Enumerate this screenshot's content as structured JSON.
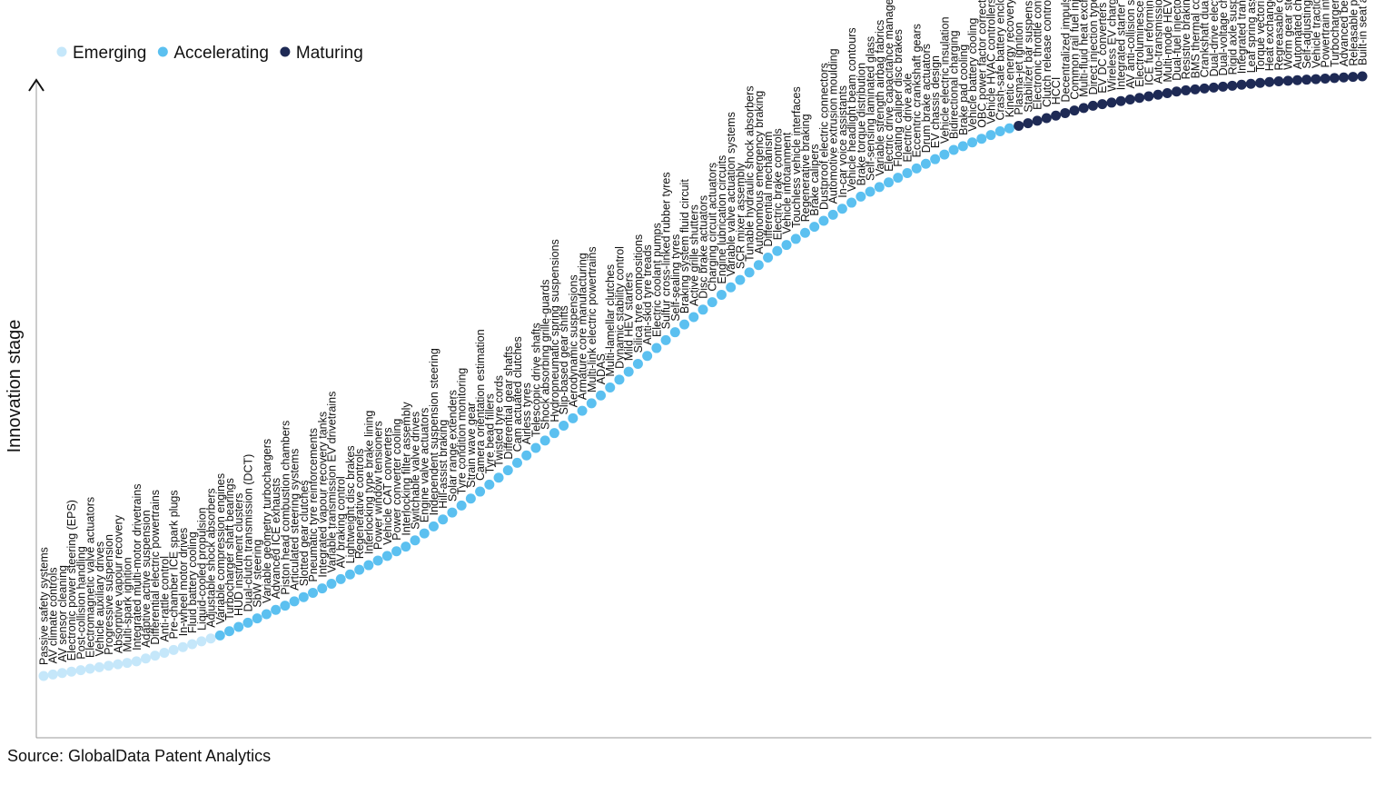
{
  "chart_data": {
    "type": "scatter",
    "y_label": "Innovation stage",
    "source": "Source: GlobalData Patent Analytics",
    "series": [
      {
        "name": "Emerging",
        "color": "#c5e7fa",
        "categories": [
          "Passive safety systems",
          "AV climate controls",
          "AV sensor cleaning",
          "Electronic power steering (EPS)",
          "Post-collision handling",
          "Electromagnetic valve actuators",
          "Vehicle auxiliary drives",
          "Progressive suspension",
          "Absorptive vapour recovery",
          "Multi-spark ignition",
          "Integrated multi-motor drivetrains",
          "Adaptive active suspension",
          "Differential electric powertrains",
          "Anti-rattle control",
          "Pre-chamber ICE spark plugs",
          "In-wheel motor drives",
          "Fluid battery cooling",
          "Liquid-cooled propulsion",
          "Adjustable shock absorbers"
        ]
      },
      {
        "name": "Accelerating",
        "color": "#5bc0f0",
        "categories": [
          "Variable compression engines",
          "Turbocharger shaft bearings",
          "HUD instrument clusters",
          "Dual-clutch transmission (DCT)",
          "SbW steering",
          "Variable geometry turbochargers",
          "Advanced ICE exhausts",
          "Piston head combustion chambers",
          "Articulated steering systems",
          "Slotted gear clutches",
          "Pneumatic tyre reinforcements",
          "Integrated vapour recovery tanks",
          "Variable transmission EV drivetrains",
          "AV braking control",
          "Lightweight disc brakes",
          "Regenerative controls",
          "Interlocking type brake lining",
          "Power window tensioners",
          "Vehicle CAT converters",
          "Power converter cooling",
          "Interlocking filter assembly",
          "Switchable valve drives",
          "Engine valve actuators",
          "Independent suspension steering",
          "Hill-assist braking",
          "Solar range extenders",
          "Tyre condition monitoring",
          "Strain wave gear",
          "Camera orientation estimation",
          "Tyre bead fillers",
          "Twisted tyre cords",
          "Differential gear shafts",
          "Cam actuated clutches",
          "Airless tyres",
          "Telescopic drive shafts",
          "Shock absorbing grille-guards",
          "Hydropneumatic spring suspensions",
          "Slip-based gear shifts",
          "Aerodynamic suspensions",
          "Armature core manufacturing",
          "Multi-link electric powertrains",
          "ADAS",
          "Multi-lamellar clutches",
          "Dynamic stability control",
          "Mild HEV starters",
          "Silica tyre compositions",
          "Anti-skid tyre treads",
          "Electric coolant pumps",
          "Sulfur cross-linked rubber tyres",
          "Self-sealing tyres",
          "Braking system fluid circuit",
          "Active grille shutters",
          "Disc brake actuators",
          "Charging circuit actuators",
          "Engine lubrication circuits",
          "Variable valve actuation systems",
          "SCR mixer assembly",
          "Tunable hydraulic shock absorbers",
          "Autonomous emergency braking",
          "Differential mechanism",
          "Electric brake controls",
          "Vehicle infotainment",
          "Touchless vehicle interfaces",
          "Regenerative braking",
          "Brake calipers",
          "Dustproof electric connectors",
          "Automotive extrusion moulding",
          "In-car voice assistants",
          "Vehicle headlight beam contours",
          "Brake torque distribution",
          "Self-sensing laminated glass",
          "Variable strength airbag fabrics",
          "Electric drive capacitance management",
          "Floating caliper disc brakes",
          "Electric drive axle",
          "Eccentric crankshaft gears",
          "Drum brake actuators",
          "EV chassis design",
          "Vehicle electric insulation",
          "Bidirectional charging",
          "Brake pad cooling",
          "Vehicle battery cooling",
          "OBC power factor correction",
          "Vehicle HVAC controllers",
          "Crash-safe battery enclosures",
          "Kinetic energy recovery system (KERS)"
        ]
      },
      {
        "name": "Maturing",
        "color": "#1e2a55",
        "categories": [
          "Plasma-jet ignition",
          "Stabilizer bar suspensions",
          "Electronic throttle controls",
          "Clutch release controls",
          "HCCI",
          "Decentralized impulse steering",
          "Common rail fuel injection",
          "Multi-fluid heat exchangers",
          "Direct injection type engines",
          "EV DC converters",
          "Wireless EV charging",
          "Integrated starter generators (ISG)",
          "AV anti-collision systems",
          "Electroluminescent displays",
          "ICE fuel reforming",
          "Auto-transmission lubrication circuits",
          "Multi-mode HEVs",
          "Dual-fuel injectors",
          "Resistive braking motors",
          "BMS thermal control",
          "Crankshaft dual bearings",
          "Dual-drive electric propulsion",
          "Dual-voltage charging stations",
          "Rigid axle suspensions",
          "Integrated transmission drives",
          "Leaf spring assembly",
          "Torque vectoring",
          "Heat exchanger brazing",
          "Regreasable conveyor bearings",
          "Worm gear steering",
          "Automated charging ports",
          "Self-adjusting brakes",
          "Vehicle traction control",
          "Powertrain interface",
          "Turbocharger intercoolers",
          "Advanced bearing lubricants",
          "Releasable pedal arms",
          "Built-in seat airbags"
        ]
      }
    ]
  }
}
